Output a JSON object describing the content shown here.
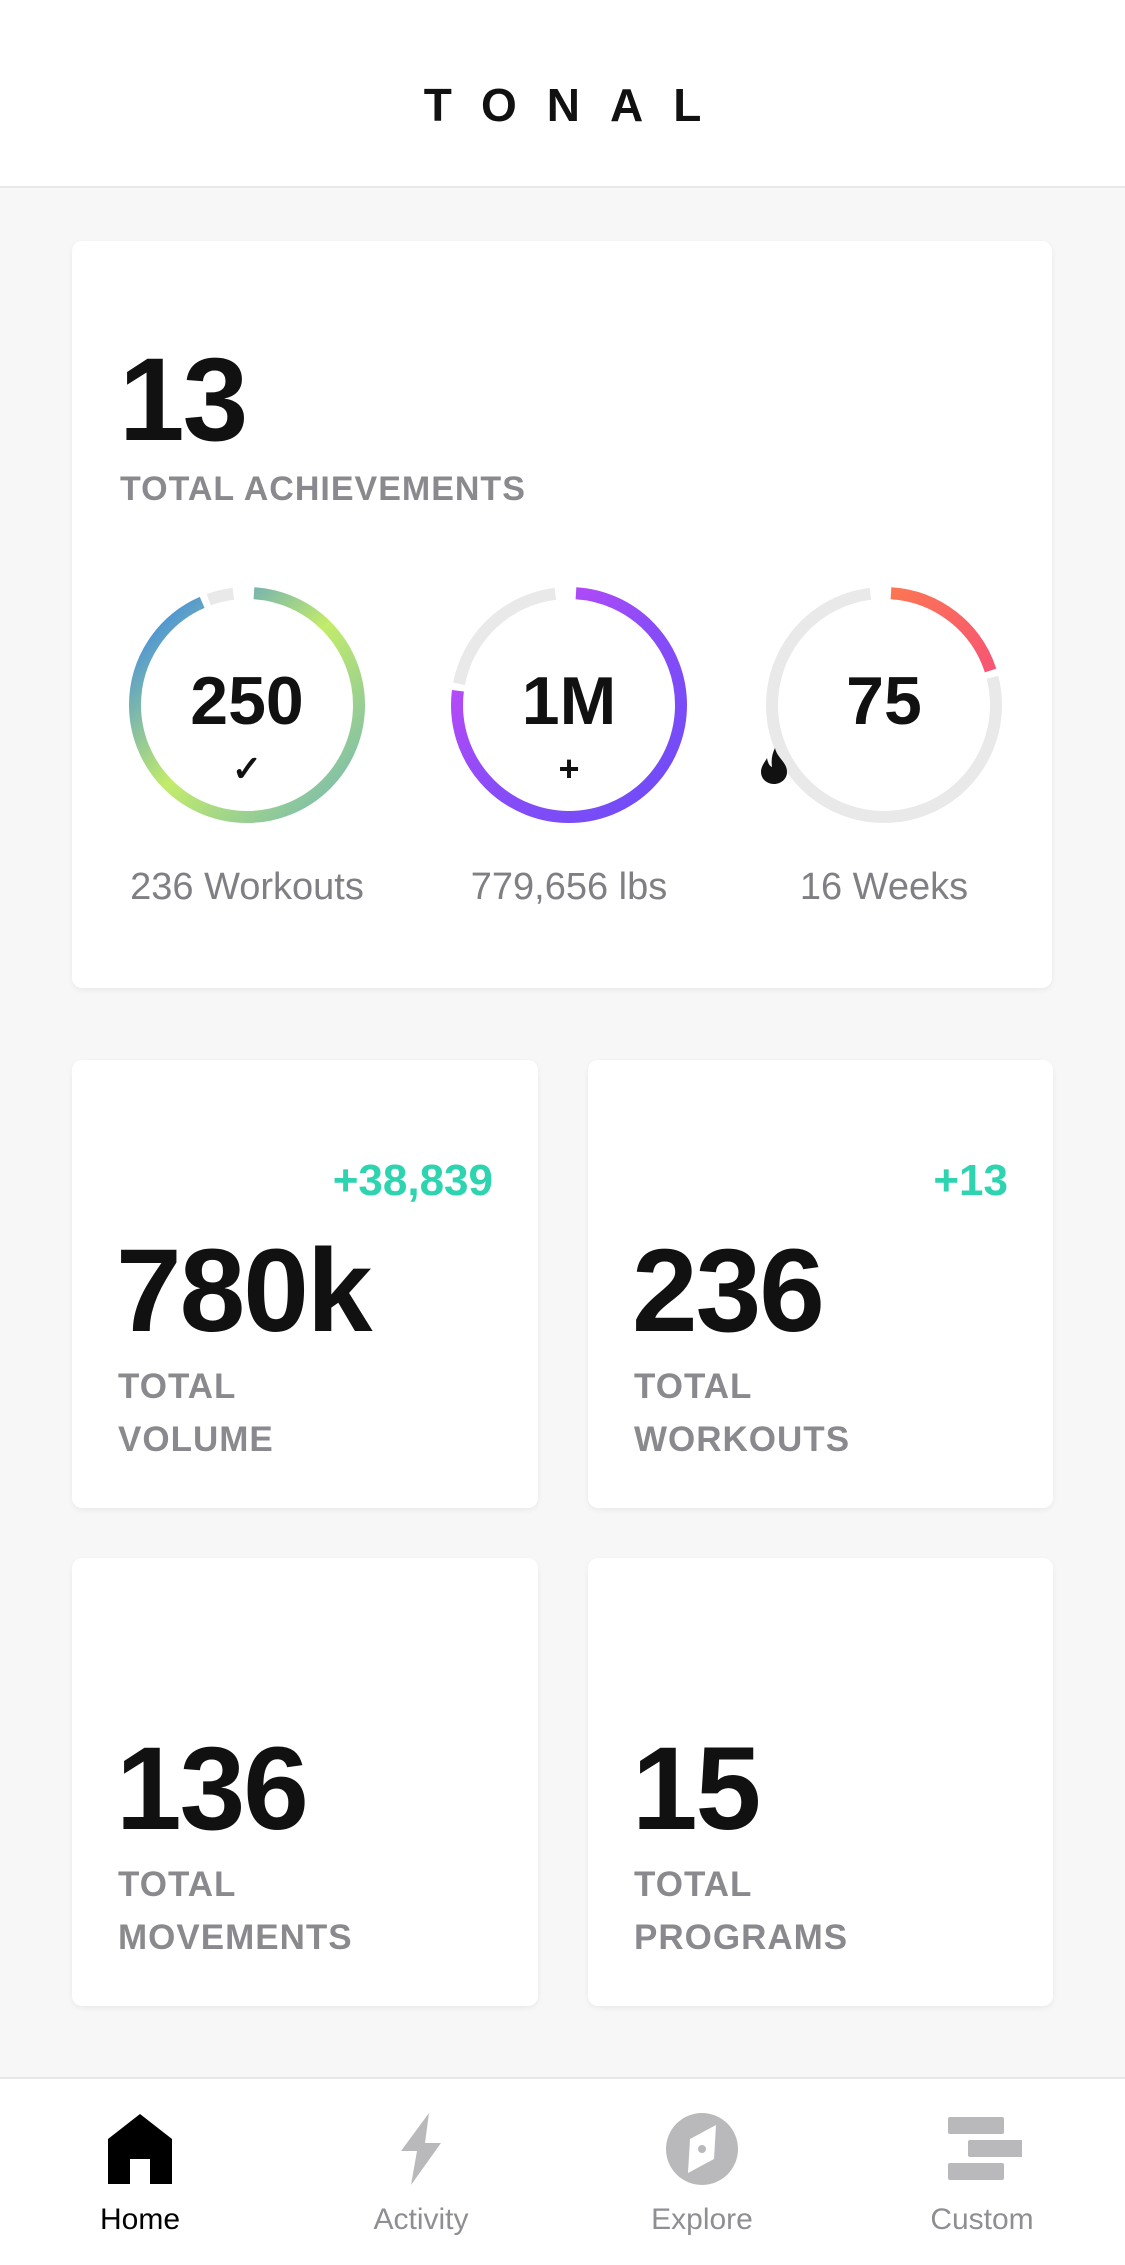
{
  "header": {
    "logo": "TONAL"
  },
  "achievements": {
    "count": "13",
    "label": "TOTAL ACHIEVEMENTS",
    "rings": [
      {
        "value": "250",
        "icon": "check-icon",
        "glyph": "✓",
        "caption": "236 Workouts",
        "progress": 0.944,
        "colors": [
          "#2a7bf6",
          "#c3ec6a",
          "#6fb3b8"
        ]
      },
      {
        "value": "1M",
        "icon": "plus-icon",
        "glyph": "+",
        "caption": "779,656 lbs",
        "progress": 0.78,
        "colors": [
          "#d548f8",
          "#8a4cf7",
          "#6b4cf7"
        ]
      },
      {
        "value": "75",
        "icon": "flame-icon",
        "glyph": "",
        "caption": "16 Weeks",
        "progress": 0.21,
        "colors": [
          "#ff8a3d",
          "#f23b8f"
        ]
      }
    ]
  },
  "stats": [
    {
      "value": "780k",
      "line1": "TOTAL",
      "line2": "VOLUME",
      "delta": "+38,839"
    },
    {
      "value": "236",
      "line1": "TOTAL",
      "line2": "WORKOUTS",
      "delta": "+13"
    },
    {
      "value": "136",
      "line1": "TOTAL",
      "line2": "MOVEMENTS",
      "delta": ""
    },
    {
      "value": "15",
      "line1": "TOTAL",
      "line2": "PROGRAMS",
      "delta": ""
    }
  ],
  "nav": [
    {
      "label": "Home",
      "icon": "home-icon",
      "active": true
    },
    {
      "label": "Activity",
      "icon": "lightning-icon",
      "active": false
    },
    {
      "label": "Explore",
      "icon": "compass-icon",
      "active": false
    },
    {
      "label": "Custom",
      "icon": "custom-bars-icon",
      "active": false
    }
  ],
  "colors": {
    "accent_delta": "#2ed3b0",
    "track": "#e9e9e9",
    "inactive_nav": "#b9b9bb"
  }
}
